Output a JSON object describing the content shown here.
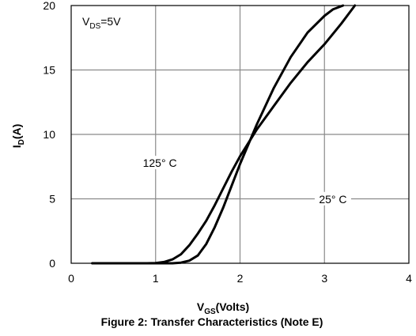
{
  "figure": {
    "caption": "Figure 2: Transfer Characteristics (Note E)"
  },
  "chart_data": {
    "type": "line",
    "xlabel": {
      "main": "V",
      "sub": "GS",
      "rest": "(Volts)"
    },
    "ylabel": {
      "main": "I",
      "sub": "D",
      "rest": "(A)"
    },
    "xlim": [
      0,
      4
    ],
    "ylim": [
      0,
      20
    ],
    "xticks": [
      "0",
      "1",
      "2",
      "3",
      "4"
    ],
    "yticks": [
      "0",
      "5",
      "10",
      "15",
      "20"
    ],
    "grid": true,
    "annotation": {
      "main": "V",
      "sub": "DS",
      "rest": "=5V"
    },
    "series": [
      {
        "name": "125° C",
        "x": [
          0.25,
          0.6,
          0.9,
          1.0,
          1.1,
          1.2,
          1.3,
          1.4,
          1.5,
          1.6,
          1.7,
          1.8,
          1.9,
          2.0,
          2.2,
          2.4,
          2.6,
          2.8,
          3.0,
          3.2,
          3.36
        ],
        "values": [
          0,
          0,
          0,
          0.02,
          0.1,
          0.3,
          0.7,
          1.4,
          2.3,
          3.3,
          4.5,
          5.8,
          7.1,
          8.3,
          10.4,
          12.2,
          14.0,
          15.6,
          17.0,
          18.6,
          20.0
        ]
      },
      {
        "name": "25° C",
        "x": [
          0.25,
          0.8,
          1.2,
          1.3,
          1.4,
          1.5,
          1.6,
          1.7,
          1.8,
          1.9,
          2.0,
          2.2,
          2.4,
          2.6,
          2.8,
          3.0,
          3.1,
          3.22
        ],
        "values": [
          0,
          0,
          0,
          0.05,
          0.2,
          0.6,
          1.5,
          2.8,
          4.3,
          6.0,
          7.7,
          10.8,
          13.6,
          16.0,
          17.9,
          19.2,
          19.7,
          20.0
        ]
      }
    ],
    "series_labels": [
      {
        "text": "125° C",
        "x": 1.05,
        "y": 7.6
      },
      {
        "text": "25° C",
        "x": 3.1,
        "y": 4.8
      }
    ]
  }
}
